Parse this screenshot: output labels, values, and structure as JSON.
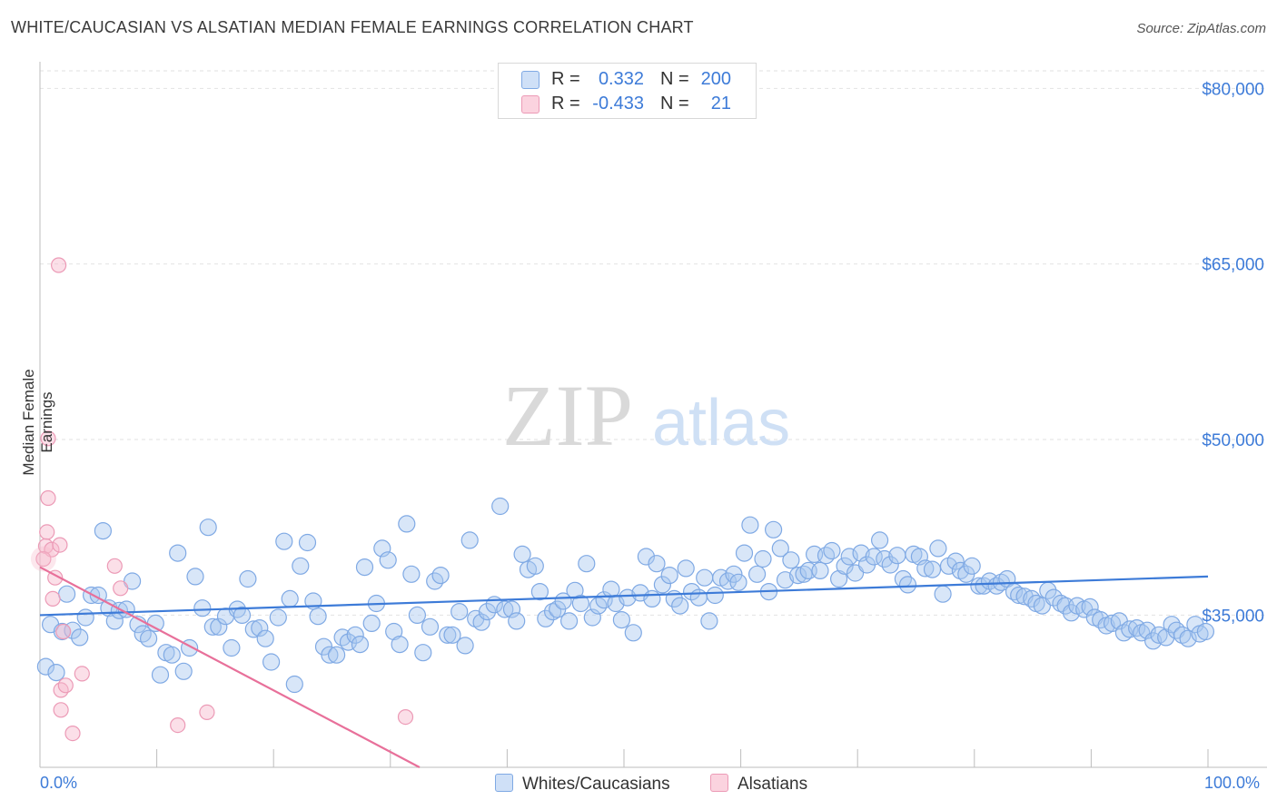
{
  "title": "WHITE/CAUCASIAN VS ALSATIAN MEDIAN FEMALE EARNINGS CORRELATION CHART",
  "source": "Source: ZipAtlas.com",
  "watermark": {
    "zip": "ZIP",
    "atlas": "atlas"
  },
  "legend_top": [
    {
      "r_label": "R =",
      "r_value": "0.332",
      "n_label": "N =",
      "n_value": "200",
      "color": "#a9c8f0"
    },
    {
      "r_label": "R =",
      "r_value": "-0.433",
      "n_label": "N =",
      "n_value": "21",
      "color": "#f7b9cb"
    }
  ],
  "bottom_legend": [
    {
      "label": "Whites/Caucasians",
      "color": "#a9c8f0"
    },
    {
      "label": "Alsatians",
      "color": "#f7b9cb"
    }
  ],
  "colors": {
    "blue": "#3d7bd8",
    "blue_fill": "#a9c8f0",
    "pink": "#e8709a",
    "pink_fill": "#f7b9cb"
  },
  "chart_data": {
    "type": "scatter",
    "title": "WHITE/CAUCASIAN VS ALSATIAN MEDIAN FEMALE EARNINGS CORRELATION CHART",
    "xlabel": "",
    "ylabel": "Median Female Earnings",
    "x_tick_labels": [
      "0.0%",
      "100.0%"
    ],
    "y_tick_labels": [
      "$35,000",
      "$50,000",
      "$65,000",
      "$80,000"
    ],
    "y_ticks": [
      35000,
      50000,
      65000,
      80000
    ],
    "xlim": [
      0,
      100
    ],
    "ylim": [
      22000,
      81500
    ],
    "grid": true,
    "series": [
      {
        "name": "Whites/Caucasians",
        "color": "#3d7bd8",
        "trend": {
          "x": [
            0,
            100
          ],
          "y": [
            35000,
            38300
          ]
        },
        "points": [
          [
            0.5,
            30.6
          ],
          [
            0.9,
            34.2
          ],
          [
            1.4,
            30.1
          ],
          [
            1.9,
            33.6
          ],
          [
            2.3,
            36.8
          ],
          [
            2.8,
            33.7
          ],
          [
            3.4,
            33.1
          ],
          [
            3.9,
            34.8
          ],
          [
            4.4,
            36.7
          ],
          [
            5.0,
            36.7
          ],
          [
            5.4,
            42.2
          ],
          [
            5.9,
            35.6
          ],
          [
            6.4,
            34.5
          ],
          [
            6.8,
            35.4
          ],
          [
            7.4,
            35.5
          ],
          [
            7.9,
            37.9
          ],
          [
            8.4,
            34.2
          ],
          [
            8.8,
            33.4
          ],
          [
            9.3,
            33.0
          ],
          [
            9.9,
            34.3
          ],
          [
            10.3,
            29.9
          ],
          [
            10.8,
            31.8
          ],
          [
            11.3,
            31.6
          ],
          [
            11.8,
            40.3
          ],
          [
            12.3,
            30.2
          ],
          [
            12.8,
            32.2
          ],
          [
            13.3,
            38.3
          ],
          [
            13.9,
            35.6
          ],
          [
            14.4,
            42.5
          ],
          [
            14.8,
            34.0
          ],
          [
            15.3,
            34.0
          ],
          [
            15.9,
            34.9
          ],
          [
            16.4,
            32.2
          ],
          [
            16.9,
            35.5
          ],
          [
            17.3,
            35.0
          ],
          [
            17.8,
            38.1
          ],
          [
            18.3,
            33.8
          ],
          [
            18.8,
            33.9
          ],
          [
            19.3,
            33.0
          ],
          [
            19.8,
            31.0
          ],
          [
            20.4,
            34.8
          ],
          [
            20.9,
            41.3
          ],
          [
            21.4,
            36.4
          ],
          [
            21.8,
            29.1
          ],
          [
            22.3,
            39.2
          ],
          [
            22.9,
            41.2
          ],
          [
            23.4,
            36.2
          ],
          [
            23.8,
            34.9
          ],
          [
            24.3,
            32.3
          ],
          [
            24.8,
            31.6
          ],
          [
            25.4,
            31.6
          ],
          [
            25.9,
            33.1
          ],
          [
            26.4,
            32.7
          ],
          [
            27.0,
            33.3
          ],
          [
            27.4,
            32.5
          ],
          [
            27.8,
            39.1
          ],
          [
            28.4,
            34.3
          ],
          [
            28.8,
            36.0
          ],
          [
            29.3,
            40.7
          ],
          [
            29.8,
            39.7
          ],
          [
            30.3,
            33.6
          ],
          [
            30.8,
            32.5
          ],
          [
            31.4,
            42.8
          ],
          [
            31.8,
            38.5
          ],
          [
            32.3,
            35.0
          ],
          [
            32.8,
            31.8
          ],
          [
            33.4,
            34.0
          ],
          [
            33.8,
            37.9
          ],
          [
            34.3,
            38.4
          ],
          [
            34.9,
            33.3
          ],
          [
            35.3,
            33.3
          ],
          [
            35.9,
            35.3
          ],
          [
            36.4,
            32.4
          ],
          [
            36.8,
            41.4
          ],
          [
            37.3,
            34.7
          ],
          [
            37.8,
            34.4
          ],
          [
            38.3,
            35.3
          ],
          [
            38.9,
            35.9
          ],
          [
            39.4,
            44.3
          ],
          [
            39.8,
            35.5
          ],
          [
            40.4,
            35.5
          ],
          [
            40.8,
            34.5
          ],
          [
            41.3,
            40.2
          ],
          [
            41.8,
            38.9
          ],
          [
            42.4,
            39.2
          ],
          [
            42.8,
            37.0
          ],
          [
            43.3,
            34.7
          ],
          [
            43.9,
            35.3
          ],
          [
            44.3,
            35.5
          ],
          [
            44.8,
            36.2
          ],
          [
            45.3,
            34.5
          ],
          [
            45.8,
            37.1
          ],
          [
            46.3,
            36.0
          ],
          [
            46.8,
            39.4
          ],
          [
            47.3,
            34.8
          ],
          [
            47.8,
            35.8
          ],
          [
            48.3,
            36.3
          ],
          [
            48.9,
            37.2
          ],
          [
            49.3,
            36.0
          ],
          [
            49.8,
            34.6
          ],
          [
            50.3,
            36.5
          ],
          [
            50.8,
            33.5
          ],
          [
            51.4,
            36.9
          ],
          [
            51.9,
            40.0
          ],
          [
            52.4,
            36.4
          ],
          [
            52.8,
            39.4
          ],
          [
            53.3,
            37.6
          ],
          [
            53.9,
            38.4
          ],
          [
            54.3,
            36.4
          ],
          [
            54.8,
            35.8
          ],
          [
            55.3,
            39.0
          ],
          [
            55.8,
            37.0
          ],
          [
            56.4,
            36.5
          ],
          [
            56.9,
            38.2
          ],
          [
            57.3,
            34.5
          ],
          [
            57.8,
            36.7
          ],
          [
            58.3,
            38.2
          ],
          [
            58.9,
            37.9
          ],
          [
            59.4,
            38.5
          ],
          [
            59.8,
            37.8
          ],
          [
            60.3,
            40.3
          ],
          [
            60.8,
            42.7
          ],
          [
            61.4,
            38.5
          ],
          [
            61.9,
            39.8
          ],
          [
            62.4,
            37.0
          ],
          [
            62.8,
            42.3
          ],
          [
            63.4,
            40.7
          ],
          [
            63.8,
            38.0
          ],
          [
            64.3,
            39.7
          ],
          [
            64.9,
            38.4
          ],
          [
            65.4,
            38.5
          ],
          [
            65.8,
            38.8
          ],
          [
            66.3,
            40.2
          ],
          [
            66.8,
            38.8
          ],
          [
            67.3,
            40.1
          ],
          [
            67.8,
            40.5
          ],
          [
            68.4,
            38.1
          ],
          [
            68.9,
            39.2
          ],
          [
            69.3,
            40.0
          ],
          [
            69.8,
            38.6
          ],
          [
            70.3,
            40.3
          ],
          [
            70.8,
            39.3
          ],
          [
            71.4,
            40.0
          ],
          [
            71.9,
            41.4
          ],
          [
            72.3,
            39.8
          ],
          [
            72.8,
            39.3
          ],
          [
            73.4,
            40.1
          ],
          [
            73.9,
            38.1
          ],
          [
            74.3,
            37.6
          ],
          [
            74.8,
            40.2
          ],
          [
            75.3,
            40.0
          ],
          [
            75.8,
            39.0
          ],
          [
            76.4,
            38.9
          ],
          [
            76.9,
            40.7
          ],
          [
            77.3,
            36.8
          ],
          [
            77.8,
            39.2
          ],
          [
            78.4,
            39.6
          ],
          [
            78.8,
            38.8
          ],
          [
            79.3,
            38.5
          ],
          [
            79.8,
            39.2
          ],
          [
            80.4,
            37.5
          ],
          [
            80.8,
            37.5
          ],
          [
            81.3,
            37.9
          ],
          [
            81.9,
            37.5
          ],
          [
            82.3,
            37.8
          ],
          [
            82.8,
            38.1
          ],
          [
            83.4,
            37.0
          ],
          [
            83.8,
            36.7
          ],
          [
            84.3,
            36.6
          ],
          [
            84.9,
            36.4
          ],
          [
            85.3,
            36.0
          ],
          [
            85.8,
            35.8
          ],
          [
            86.3,
            37.1
          ],
          [
            86.8,
            36.5
          ],
          [
            87.4,
            36.0
          ],
          [
            87.8,
            35.8
          ],
          [
            88.3,
            35.2
          ],
          [
            88.8,
            35.8
          ],
          [
            89.4,
            35.5
          ],
          [
            89.9,
            35.7
          ],
          [
            90.3,
            34.8
          ],
          [
            90.8,
            34.6
          ],
          [
            91.3,
            34.1
          ],
          [
            91.8,
            34.3
          ],
          [
            92.4,
            34.5
          ],
          [
            92.8,
            33.5
          ],
          [
            93.3,
            33.8
          ],
          [
            93.9,
            33.9
          ],
          [
            94.3,
            33.5
          ],
          [
            94.8,
            33.7
          ],
          [
            95.3,
            32.8
          ],
          [
            95.8,
            33.3
          ],
          [
            96.4,
            33.1
          ],
          [
            96.9,
            34.2
          ],
          [
            97.3,
            33.7
          ],
          [
            97.8,
            33.3
          ],
          [
            98.3,
            33.0
          ],
          [
            98.9,
            34.2
          ],
          [
            99.3,
            33.4
          ],
          [
            99.8,
            33.6
          ]
        ]
      },
      {
        "name": "Alsatians",
        "color": "#e8709a",
        "trend": {
          "x": [
            0,
            32.5
          ],
          "y": [
            39100,
            22000
          ]
        },
        "points": [
          [
            0.5,
            40.9
          ],
          [
            0.6,
            42.1
          ],
          [
            0.7,
            50.1
          ],
          [
            0.7,
            45.0
          ],
          [
            1.0,
            40.6
          ],
          [
            1.1,
            36.4
          ],
          [
            1.3,
            38.2
          ],
          [
            1.6,
            64.9
          ],
          [
            1.7,
            41.0
          ],
          [
            1.8,
            28.6
          ],
          [
            1.8,
            26.9
          ],
          [
            2.0,
            33.6
          ],
          [
            2.2,
            29.0
          ],
          [
            2.8,
            24.9
          ],
          [
            3.6,
            30.0
          ],
          [
            6.4,
            39.2
          ],
          [
            6.9,
            37.3
          ],
          [
            11.8,
            25.6
          ],
          [
            14.3,
            26.7
          ],
          [
            31.3,
            26.3
          ],
          [
            0.3,
            39.8
          ]
        ]
      }
    ]
  }
}
